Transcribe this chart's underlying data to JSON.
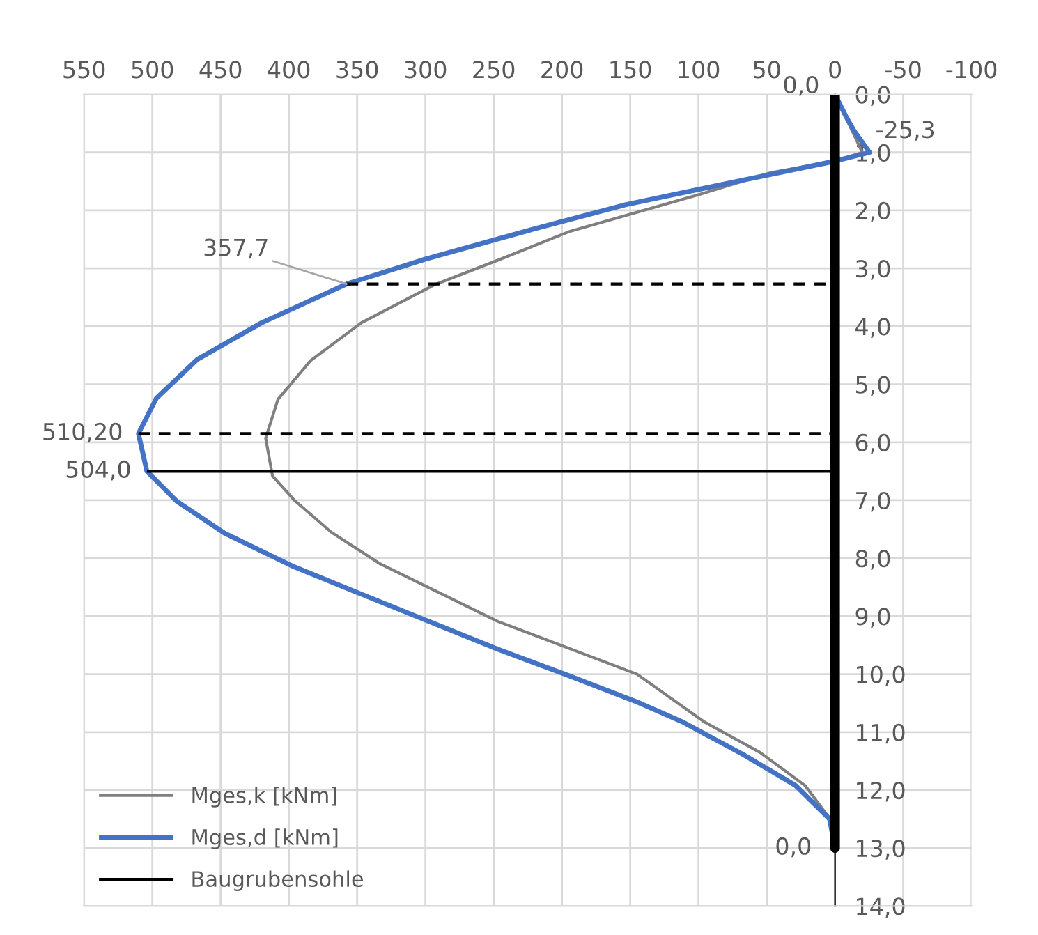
{
  "chart_data": {
    "type": "line",
    "xlim": [
      550,
      -100
    ],
    "xticks": [
      550,
      500,
      450,
      400,
      350,
      300,
      250,
      200,
      150,
      100,
      50,
      0,
      -50,
      -100
    ],
    "ylim": [
      14,
      0
    ],
    "yticks": [
      {
        "value": 0,
        "label": "0,0"
      },
      {
        "value": 1,
        "label": "1,0"
      },
      {
        "value": 2,
        "label": "2,0"
      },
      {
        "value": 3,
        "label": "3,0"
      },
      {
        "value": 4,
        "label": "4,0"
      },
      {
        "value": 5,
        "label": "5,0"
      },
      {
        "value": 6,
        "label": "6,0"
      },
      {
        "value": 7,
        "label": "7,0"
      },
      {
        "value": 8,
        "label": "8,0"
      },
      {
        "value": 9,
        "label": "9,0"
      },
      {
        "value": 10,
        "label": "10,0"
      },
      {
        "value": 11,
        "label": "11,0"
      },
      {
        "value": 12,
        "label": "12,0"
      },
      {
        "value": 13,
        "label": "13,0"
      },
      {
        "value": 14,
        "label": "14,0"
      }
    ],
    "grid": true,
    "legend": "bottom left",
    "marker": "none",
    "line_style": "solid",
    "series": [
      {
        "name": "Mges,k [kNm]",
        "color": "#7f7f7f",
        "x": [
          0,
          -20,
          0,
          47,
          100,
          194,
          247,
          294,
          347,
          384,
          408,
          417,
          412,
          396,
          369,
          333,
          247,
          145,
          96,
          55,
          22,
          2,
          0
        ],
        "values": [
          0,
          1.0,
          1.15,
          1.35,
          1.73,
          2.36,
          2.86,
          3.29,
          3.94,
          4.59,
          5.26,
          5.93,
          6.58,
          7.0,
          7.55,
          8.1,
          9.09,
          10.0,
          10.82,
          11.35,
          11.92,
          12.55,
          13.0
        ]
      },
      {
        "name": "Mges,d [kNm]",
        "color": "#4472c4",
        "x": [
          0,
          -8,
          -14,
          -25.3,
          0,
          80,
          153,
          222,
          300,
          357.7,
          420,
          467,
          497,
          510.2,
          504,
          482,
          447,
          398,
          349,
          247,
          198,
          145,
          112,
          67,
          29,
          4,
          0
        ],
        "values": [
          0,
          0.38,
          0.63,
          1.0,
          1.15,
          1.54,
          1.9,
          2.33,
          2.84,
          3.27,
          3.94,
          4.57,
          5.24,
          5.85,
          6.5,
          7.02,
          7.57,
          8.13,
          8.6,
          9.57,
          10.0,
          10.48,
          10.82,
          11.39,
          11.92,
          12.5,
          13.0
        ]
      },
      {
        "name": "Baugrubensohle",
        "color": "#000000",
        "x": [
          504,
          0
        ],
        "values": [
          6.5,
          6.5
        ]
      },
      {
        "color": "#000000",
        "line_style": "dashed",
        "x": [
          357.7,
          0
        ],
        "values": [
          3.27,
          3.27
        ]
      },
      {
        "color": "#000000",
        "line_style": "dashed",
        "x": [
          510.2,
          0
        ],
        "values": [
          5.85,
          5.85
        ]
      },
      {
        "color": "#000000",
        "x": [
          0,
          0
        ],
        "values": [
          0,
          13
        ]
      }
    ],
    "annotations": [
      {
        "text": "0,0",
        "x": 0,
        "y": 0
      },
      {
        "text": "-25,3",
        "x": -25.3,
        "y": 1.0
      },
      {
        "text": "357,7",
        "x": 357.7,
        "y": 3.27
      },
      {
        "text": "510,20",
        "x": 510.2,
        "y": 5.85
      },
      {
        "text": "504,0",
        "x": 504,
        "y": 6.5
      },
      {
        "text": "0,0",
        "x": 0,
        "y": 13.0
      }
    ]
  }
}
